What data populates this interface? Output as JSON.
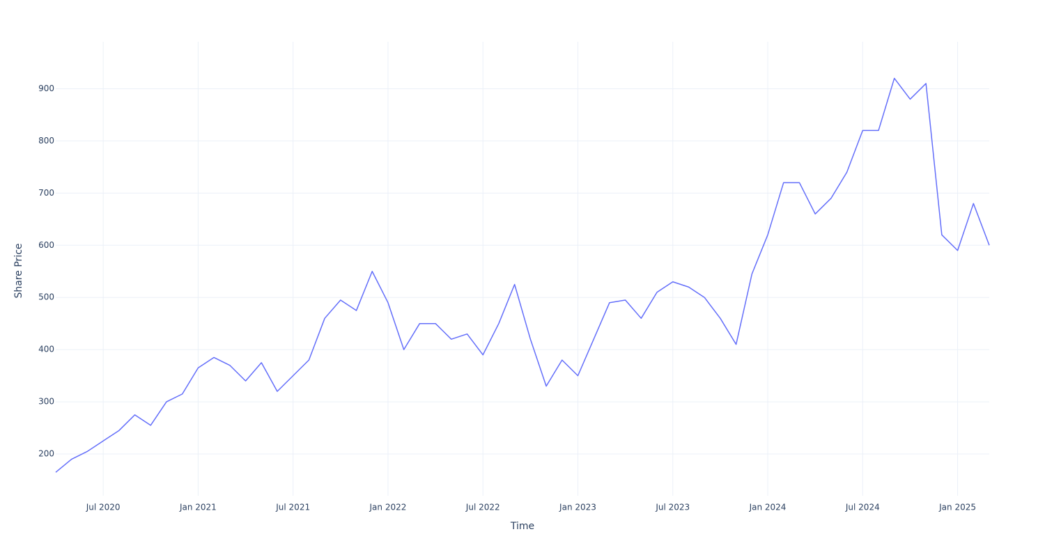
{
  "chart_data": {
    "type": "line",
    "x_label": "Time",
    "y_label": "Share Price",
    "x": [
      "2020-04",
      "2020-05",
      "2020-06",
      "2020-07",
      "2020-08",
      "2020-09",
      "2020-10",
      "2020-11",
      "2020-12",
      "2021-01",
      "2021-02",
      "2021-03",
      "2021-04",
      "2021-05",
      "2021-06",
      "2021-07",
      "2021-08",
      "2021-09",
      "2021-10",
      "2021-11",
      "2021-12",
      "2022-01",
      "2022-02",
      "2022-03",
      "2022-04",
      "2022-05",
      "2022-06",
      "2022-07",
      "2022-08",
      "2022-09",
      "2022-10",
      "2022-11",
      "2022-12",
      "2023-01",
      "2023-02",
      "2023-03",
      "2023-04",
      "2023-05",
      "2023-06",
      "2023-07",
      "2023-08",
      "2023-09",
      "2023-10",
      "2023-11",
      "2023-12",
      "2024-01",
      "2024-02",
      "2024-03",
      "2024-04",
      "2024-05",
      "2024-06",
      "2024-07",
      "2024-08",
      "2024-09",
      "2024-10",
      "2024-11",
      "2024-12",
      "2025-01",
      "2025-02",
      "2025-03"
    ],
    "series": [
      {
        "name": "Share Price",
        "color": "#636efa",
        "values": [
          165,
          190,
          205,
          225,
          245,
          275,
          255,
          300,
          315,
          365,
          385,
          370,
          340,
          375,
          320,
          350,
          380,
          460,
          495,
          475,
          550,
          490,
          400,
          450,
          450,
          420,
          430,
          390,
          450,
          525,
          420,
          330,
          380,
          350,
          420,
          490,
          495,
          460,
          510,
          530,
          520,
          500,
          460,
          410,
          545,
          620,
          720,
          720,
          660,
          690,
          740,
          820,
          820,
          920,
          880,
          910,
          620,
          590,
          680,
          600
        ]
      }
    ],
    "xlim": [
      "2020-04",
      "2025-03"
    ],
    "xticks": [
      {
        "value": "2020-07",
        "label": "Jul 2020"
      },
      {
        "value": "2021-01",
        "label": "Jan 2021"
      },
      {
        "value": "2021-07",
        "label": "Jul 2021"
      },
      {
        "value": "2022-01",
        "label": "Jan 2022"
      },
      {
        "value": "2022-07",
        "label": "Jul 2022"
      },
      {
        "value": "2023-01",
        "label": "Jan 2023"
      },
      {
        "value": "2023-07",
        "label": "Jul 2023"
      },
      {
        "value": "2024-01",
        "label": "Jan 2024"
      },
      {
        "value": "2024-07",
        "label": "Jul 2024"
      },
      {
        "value": "2025-01",
        "label": "Jan 2025"
      }
    ],
    "ylim": [
      120,
      990
    ],
    "yticks": [
      200,
      300,
      400,
      500,
      600,
      700,
      800,
      900
    ],
    "grid": true
  }
}
